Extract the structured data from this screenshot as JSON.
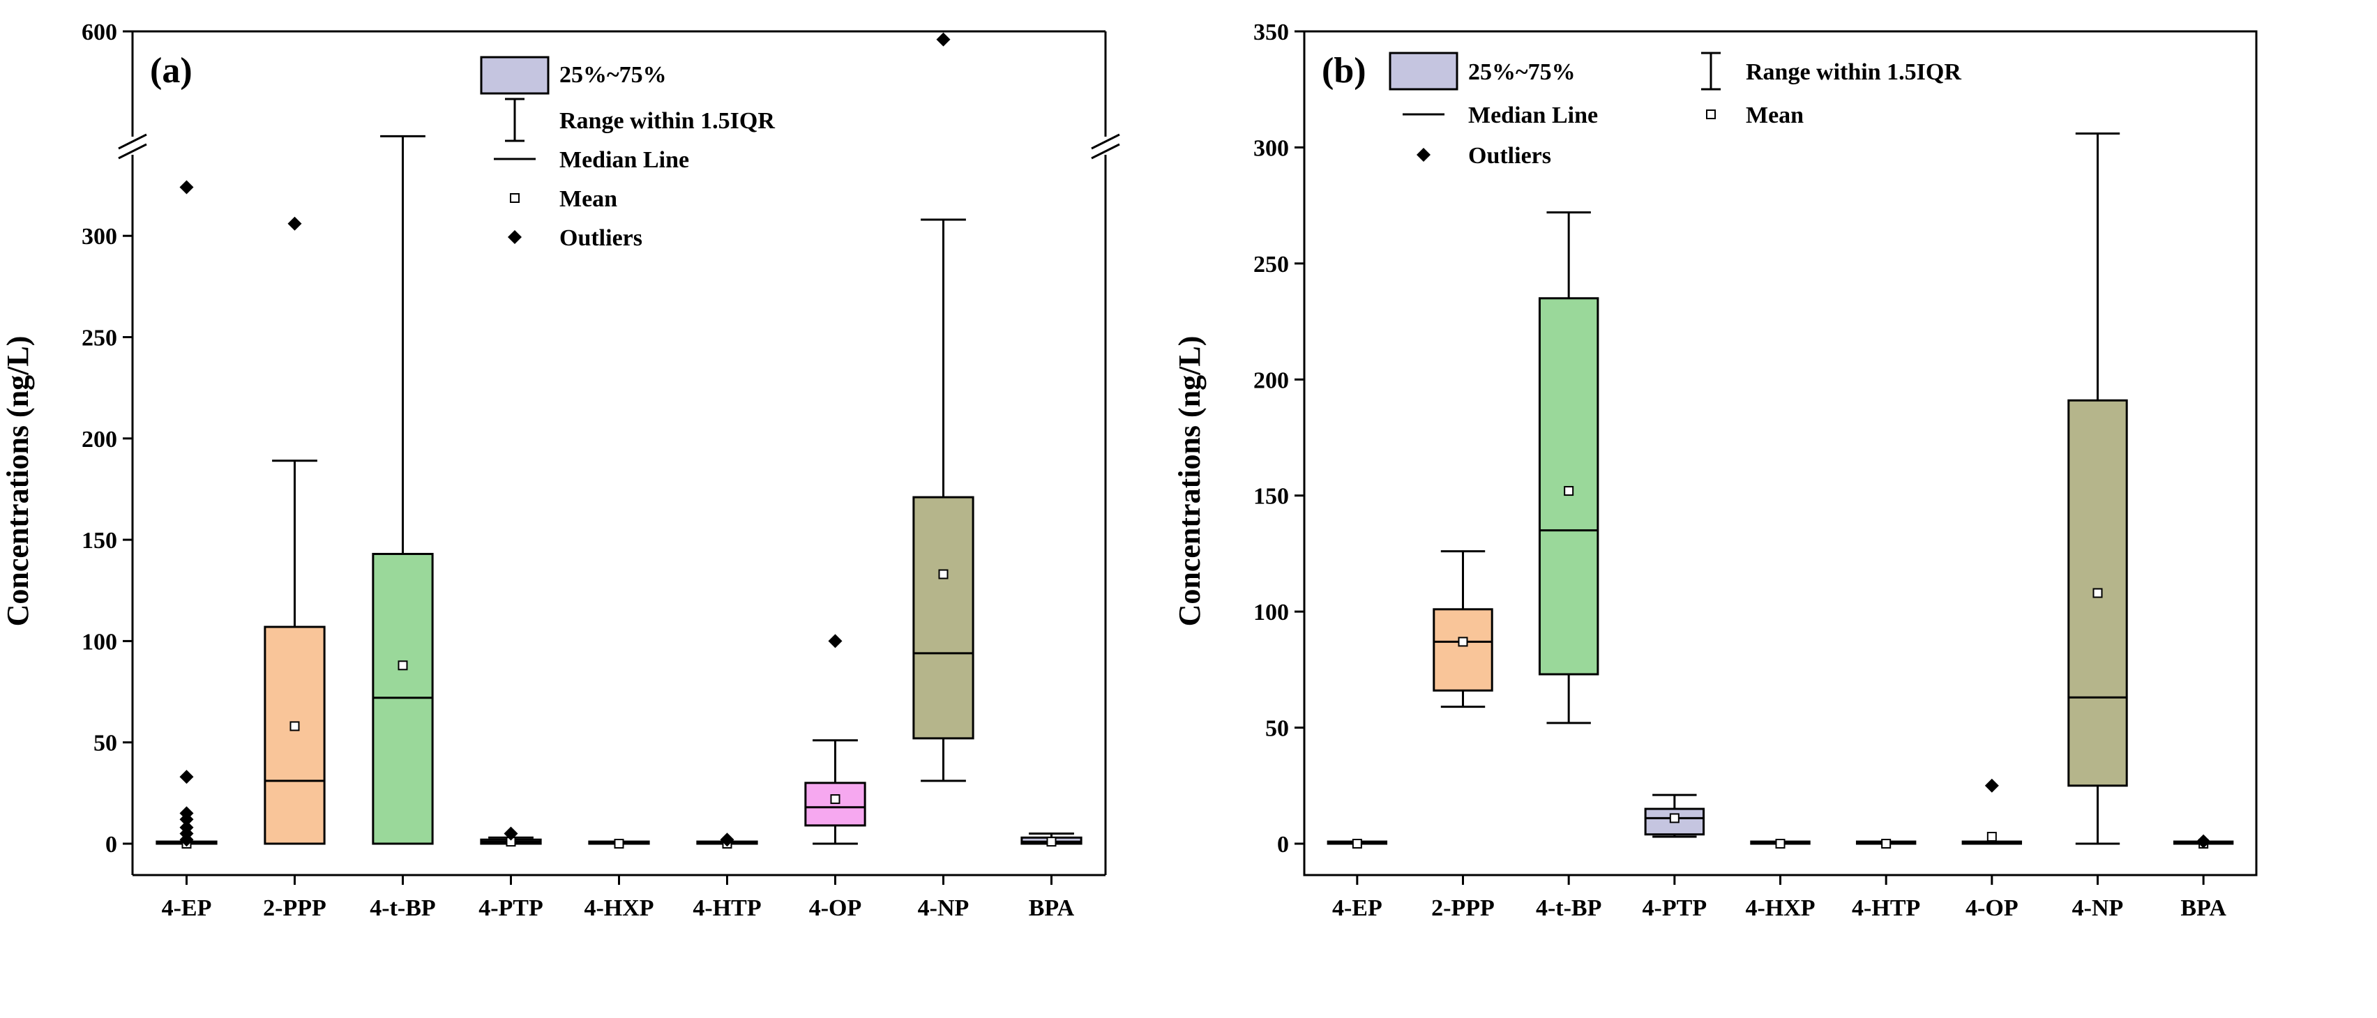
{
  "chart_data": [
    {
      "type": "box",
      "panel_label": "(a)",
      "ylabel": "Concentrations (ng/L)",
      "ylim": [
        0,
        600
      ],
      "y_break": [
        340,
        600
      ],
      "yticks": [
        {
          "value": 0,
          "label": "0"
        },
        {
          "value": 50,
          "label": "50"
        },
        {
          "value": 100,
          "label": "100"
        },
        {
          "value": 150,
          "label": "150"
        },
        {
          "value": 200,
          "label": "200"
        },
        {
          "value": 250,
          "label": "250"
        },
        {
          "value": 300,
          "label": "300"
        },
        {
          "value": 600,
          "label": "600"
        }
      ],
      "categories": [
        "4-EP",
        "2-PPP",
        "4-t-BP",
        "4-PTP",
        "4-HXP",
        "4-HTP",
        "4-OP",
        "4-NP",
        "BPA"
      ],
      "boxes": [
        {
          "name": "4-EP",
          "color": "#ffffff",
          "q1": 0,
          "median": 0,
          "q3": 0,
          "whisker_low": 0,
          "whisker_high": 0,
          "mean": 0,
          "outliers": [
            2,
            5,
            8,
            12,
            15,
            33,
            324
          ]
        },
        {
          "name": "2-PPP",
          "color": "#f9c599",
          "q1": 0,
          "median": 31,
          "q3": 107,
          "whisker_low": 0,
          "whisker_high": 189,
          "mean": 58,
          "outliers": [
            306
          ]
        },
        {
          "name": "4-t-BP",
          "color": "#9ad89a",
          "q1": 0,
          "median": 72,
          "q3": 143,
          "whisker_low": 0,
          "whisker_high": 341,
          "mean": 88,
          "outliers": []
        },
        {
          "name": "4-PTP",
          "color": "#c5c5e0",
          "q1": 0,
          "median": 1,
          "q3": 2,
          "whisker_low": 0,
          "whisker_high": 3,
          "mean": 1,
          "outliers": [
            5
          ]
        },
        {
          "name": "4-HXP",
          "color": "#ffffff",
          "q1": 0,
          "median": 0,
          "q3": 0,
          "whisker_low": 0,
          "whisker_high": 0,
          "mean": 0,
          "outliers": []
        },
        {
          "name": "4-HTP",
          "color": "#ffffff",
          "q1": 0,
          "median": 0,
          "q3": 0,
          "whisker_low": 0,
          "whisker_high": 0,
          "mean": 0,
          "outliers": [
            2
          ]
        },
        {
          "name": "4-OP",
          "color": "#f6a8f0",
          "q1": 9,
          "median": 18,
          "q3": 30,
          "whisker_low": 0,
          "whisker_high": 51,
          "mean": 22,
          "outliers": [
            100
          ]
        },
        {
          "name": "4-NP",
          "color": "#b5b58b",
          "q1": 52,
          "median": 94,
          "q3": 171,
          "whisker_low": 31,
          "whisker_high": 308,
          "mean": 133,
          "outliers": [
            580
          ]
        },
        {
          "name": "BPA",
          "color": "#c5c5e0",
          "q1": 0,
          "median": 1,
          "q3": 3,
          "whisker_low": 0,
          "whisker_high": 5,
          "mean": 1,
          "outliers": []
        }
      ],
      "legend": {
        "box": "25%~75%",
        "range": "Range within 1.5IQR",
        "median": "Median Line",
        "mean": "Mean",
        "outliers": "Outliers"
      }
    },
    {
      "type": "box",
      "panel_label": "(b)",
      "ylabel": "Concentrations (ng/L)",
      "ylim": [
        0,
        350
      ],
      "yticks": [
        {
          "value": 0,
          "label": "0"
        },
        {
          "value": 50,
          "label": "50"
        },
        {
          "value": 100,
          "label": "100"
        },
        {
          "value": 150,
          "label": "150"
        },
        {
          "value": 200,
          "label": "200"
        },
        {
          "value": 250,
          "label": "250"
        },
        {
          "value": 300,
          "label": "300"
        },
        {
          "value": 350,
          "label": "350"
        }
      ],
      "categories": [
        "4-EP",
        "2-PPP",
        "4-t-BP",
        "4-PTP",
        "4-HXP",
        "4-HTP",
        "4-OP",
        "4-NP",
        "BPA"
      ],
      "boxes": [
        {
          "name": "4-EP",
          "color": "#ffffff",
          "q1": 0,
          "median": 0,
          "q3": 0,
          "whisker_low": 0,
          "whisker_high": 0,
          "mean": 0,
          "outliers": []
        },
        {
          "name": "2-PPP",
          "color": "#f9c599",
          "q1": 66,
          "median": 87,
          "q3": 101,
          "whisker_low": 59,
          "whisker_high": 126,
          "mean": 87,
          "outliers": []
        },
        {
          "name": "4-t-BP",
          "color": "#9ad89a",
          "q1": 73,
          "median": 135,
          "q3": 235,
          "whisker_low": 52,
          "whisker_high": 272,
          "mean": 152,
          "outliers": []
        },
        {
          "name": "4-PTP",
          "color": "#c5c5e0",
          "q1": 4,
          "median": 11,
          "q3": 15,
          "whisker_low": 3,
          "whisker_high": 21,
          "mean": 11,
          "outliers": []
        },
        {
          "name": "4-HXP",
          "color": "#ffffff",
          "q1": 0,
          "median": 0,
          "q3": 0,
          "whisker_low": 0,
          "whisker_high": 0,
          "mean": 0,
          "outliers": []
        },
        {
          "name": "4-HTP",
          "color": "#ffffff",
          "q1": 0,
          "median": 0,
          "q3": 0,
          "whisker_low": 0,
          "whisker_high": 0,
          "mean": 0,
          "outliers": []
        },
        {
          "name": "4-OP",
          "color": "#ffffff",
          "q1": 0,
          "median": 0,
          "q3": 0,
          "whisker_low": 0,
          "whisker_high": 0,
          "mean": 3,
          "outliers": [
            25
          ]
        },
        {
          "name": "4-NP",
          "color": "#b5b58b",
          "q1": 25,
          "median": 63,
          "q3": 191,
          "whisker_low": 0,
          "whisker_high": 306,
          "mean": 108,
          "outliers": []
        },
        {
          "name": "BPA",
          "color": "#ffffff",
          "q1": 0,
          "median": 0,
          "q3": 0,
          "whisker_low": 0,
          "whisker_high": 0,
          "mean": 0,
          "outliers": [
            1
          ]
        }
      ],
      "legend": {
        "box": "25%~75%",
        "range": "Range within 1.5IQR",
        "median": "Median Line",
        "mean": "Mean",
        "outliers": "Outliers"
      }
    }
  ]
}
